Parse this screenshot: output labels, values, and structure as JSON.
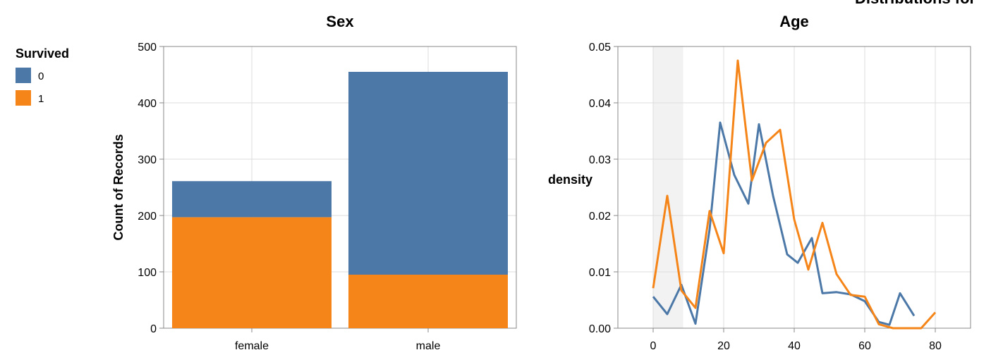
{
  "top_title": "Distributions for",
  "legend": {
    "title": "Survived",
    "items": [
      {
        "label": "0",
        "color": "#4c78a8"
      },
      {
        "label": "1",
        "color": "#f58518"
      }
    ]
  },
  "chart_data": [
    {
      "type": "bar",
      "stacked": true,
      "title": "Sex",
      "xlabel": "",
      "ylabel": "Count of Records",
      "ylim": [
        0,
        500
      ],
      "yticks": [
        "0",
        "100",
        "200",
        "300",
        "400",
        "500"
      ],
      "categories": [
        "female",
        "male"
      ],
      "series": [
        {
          "name": "0",
          "color": "#4c78a8",
          "values": [
            64,
            360
          ]
        },
        {
          "name": "1",
          "color": "#f58518",
          "values": [
            197,
            95
          ]
        }
      ],
      "grid": true
    },
    {
      "type": "line",
      "title": "Age",
      "xlabel": "",
      "ylabel": "density",
      "xlim": [
        -10,
        90
      ],
      "ylim": [
        0,
        0.05
      ],
      "xticks": [
        "0",
        "20",
        "40",
        "60",
        "80"
      ],
      "yticks": [
        "0.00",
        "0.01",
        "0.02",
        "0.03",
        "0.04",
        "0.05"
      ],
      "highlight_range": [
        0,
        8.5
      ],
      "grid": true,
      "series": [
        {
          "name": "0",
          "color": "#4c78a8",
          "x": [
            0,
            4,
            8,
            12,
            16,
            19,
            23,
            27,
            30,
            34,
            38,
            41,
            45,
            48,
            52,
            56,
            60,
            64,
            67,
            70,
            74
          ],
          "y": [
            0.0056,
            0.0025,
            0.0077,
            0.0008,
            0.0175,
            0.0365,
            0.0272,
            0.0221,
            0.0362,
            0.0235,
            0.0131,
            0.0116,
            0.016,
            0.0062,
            0.0064,
            0.006,
            0.0048,
            0.0011,
            0.0006,
            0.0062,
            0.0022
          ]
        },
        {
          "name": "1",
          "color": "#f58518",
          "x": [
            0,
            4,
            8,
            12,
            16,
            20,
            24,
            28,
            32,
            36,
            40,
            44,
            48,
            52,
            56,
            60,
            64,
            68,
            72,
            76,
            80
          ],
          "y": [
            0.0071,
            0.0235,
            0.0067,
            0.0036,
            0.0208,
            0.0133,
            0.0475,
            0.0262,
            0.0329,
            0.0352,
            0.0193,
            0.0104,
            0.0187,
            0.0096,
            0.0059,
            0.0056,
            0.0007,
            0.0,
            0.0,
            0.0,
            0.0028
          ]
        }
      ]
    }
  ]
}
